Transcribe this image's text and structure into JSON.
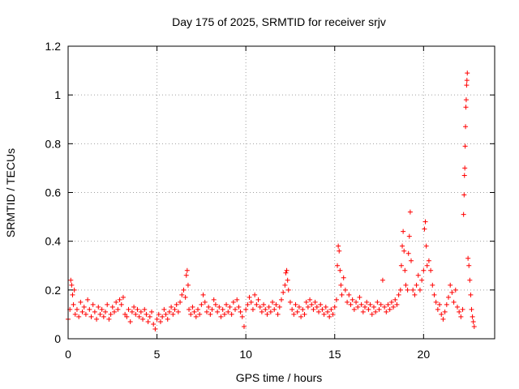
{
  "chart_data": {
    "type": "scatter",
    "title": "Day 175 of 2025, SRMTID for receiver srjv",
    "xlabel": "GPS time / hours",
    "ylabel": "SRMTID / TECUs",
    "xlim": [
      0,
      24
    ],
    "ylim": [
      0,
      1.2
    ],
    "xticks": [
      0,
      5,
      10,
      15,
      20
    ],
    "xtick_labels": [
      "0",
      "5",
      "10",
      "15",
      "20"
    ],
    "yticks": [
      0,
      0.2,
      0.4,
      0.6,
      0.8,
      1,
      1.2
    ],
    "ytick_labels": [
      "0",
      "0.2",
      "0.4",
      "0.6",
      "0.8",
      "1",
      "1.2"
    ],
    "grid": true,
    "marker": "+",
    "color": "#ff0000",
    "axis_color": "#000000",
    "grid_color": "#a0a0a0",
    "series": [
      {
        "name": "SRMTID",
        "points": [
          [
            0.0,
            0.08
          ],
          [
            0.1,
            0.12
          ],
          [
            0.15,
            0.24
          ],
          [
            0.2,
            0.22
          ],
          [
            0.25,
            0.18
          ],
          [
            0.3,
            0.14
          ],
          [
            0.35,
            0.2
          ],
          [
            0.4,
            0.1
          ],
          [
            0.5,
            0.12
          ],
          [
            0.6,
            0.09
          ],
          [
            0.7,
            0.15
          ],
          [
            0.8,
            0.11
          ],
          [
            0.9,
            0.13
          ],
          [
            1.0,
            0.1
          ],
          [
            1.1,
            0.16
          ],
          [
            1.2,
            0.12
          ],
          [
            1.3,
            0.09
          ],
          [
            1.4,
            0.14
          ],
          [
            1.5,
            0.11
          ],
          [
            1.6,
            0.08
          ],
          [
            1.7,
            0.13
          ],
          [
            1.8,
            0.1
          ],
          [
            1.9,
            0.12
          ],
          [
            2.0,
            0.09
          ],
          [
            2.1,
            0.11
          ],
          [
            2.2,
            0.14
          ],
          [
            2.3,
            0.08
          ],
          [
            2.4,
            0.1
          ],
          [
            2.5,
            0.13
          ],
          [
            2.6,
            0.11
          ],
          [
            2.7,
            0.15
          ],
          [
            2.8,
            0.12
          ],
          [
            2.9,
            0.16
          ],
          [
            3.0,
            0.14
          ],
          [
            3.1,
            0.17
          ],
          [
            3.2,
            0.1
          ],
          [
            3.3,
            0.09
          ],
          [
            3.4,
            0.12
          ],
          [
            3.5,
            0.07
          ],
          [
            3.6,
            0.11
          ],
          [
            3.7,
            0.13
          ],
          [
            3.8,
            0.1
          ],
          [
            3.9,
            0.12
          ],
          [
            4.0,
            0.09
          ],
          [
            4.1,
            0.11
          ],
          [
            4.2,
            0.08
          ],
          [
            4.3,
            0.12
          ],
          [
            4.4,
            0.1
          ],
          [
            4.5,
            0.07
          ],
          [
            4.6,
            0.09
          ],
          [
            4.7,
            0.11
          ],
          [
            4.8,
            0.06
          ],
          [
            4.9,
            0.04
          ],
          [
            5.0,
            0.08
          ],
          [
            5.1,
            0.1
          ],
          [
            5.2,
            0.07
          ],
          [
            5.3,
            0.09
          ],
          [
            5.4,
            0.12
          ],
          [
            5.5,
            0.1
          ],
          [
            5.6,
            0.08
          ],
          [
            5.7,
            0.11
          ],
          [
            5.8,
            0.13
          ],
          [
            5.9,
            0.1
          ],
          [
            6.0,
            0.12
          ],
          [
            6.1,
            0.14
          ],
          [
            6.2,
            0.11
          ],
          [
            6.3,
            0.15
          ],
          [
            6.4,
            0.18
          ],
          [
            6.5,
            0.2
          ],
          [
            6.6,
            0.17
          ],
          [
            6.65,
            0.26
          ],
          [
            6.7,
            0.28
          ],
          [
            6.75,
            0.22
          ],
          [
            6.8,
            0.12
          ],
          [
            6.9,
            0.1
          ],
          [
            7.0,
            0.13
          ],
          [
            7.1,
            0.11
          ],
          [
            7.2,
            0.09
          ],
          [
            7.3,
            0.12
          ],
          [
            7.4,
            0.1
          ],
          [
            7.5,
            0.14
          ],
          [
            7.6,
            0.18
          ],
          [
            7.7,
            0.15
          ],
          [
            7.8,
            0.11
          ],
          [
            7.9,
            0.13
          ],
          [
            8.0,
            0.1
          ],
          [
            8.1,
            0.12
          ],
          [
            8.2,
            0.16
          ],
          [
            8.3,
            0.14
          ],
          [
            8.4,
            0.11
          ],
          [
            8.5,
            0.13
          ],
          [
            8.6,
            0.09
          ],
          [
            8.7,
            0.12
          ],
          [
            8.8,
            0.1
          ],
          [
            8.9,
            0.14
          ],
          [
            9.0,
            0.11
          ],
          [
            9.1,
            0.13
          ],
          [
            9.2,
            0.1
          ],
          [
            9.3,
            0.15
          ],
          [
            9.4,
            0.12
          ],
          [
            9.5,
            0.16
          ],
          [
            9.6,
            0.13
          ],
          [
            9.7,
            0.11
          ],
          [
            9.8,
            0.09
          ],
          [
            9.9,
            0.05
          ],
          [
            10.0,
            0.12
          ],
          [
            10.1,
            0.14
          ],
          [
            10.2,
            0.17
          ],
          [
            10.3,
            0.15
          ],
          [
            10.4,
            0.12
          ],
          [
            10.5,
            0.18
          ],
          [
            10.6,
            0.14
          ],
          [
            10.7,
            0.16
          ],
          [
            10.8,
            0.13
          ],
          [
            10.9,
            0.11
          ],
          [
            11.0,
            0.14
          ],
          [
            11.1,
            0.12
          ],
          [
            11.2,
            0.1
          ],
          [
            11.3,
            0.13
          ],
          [
            11.4,
            0.11
          ],
          [
            11.5,
            0.15
          ],
          [
            11.6,
            0.12
          ],
          [
            11.7,
            0.14
          ],
          [
            11.8,
            0.1
          ],
          [
            11.9,
            0.13
          ],
          [
            12.0,
            0.16
          ],
          [
            12.1,
            0.19
          ],
          [
            12.2,
            0.22
          ],
          [
            12.25,
            0.27
          ],
          [
            12.3,
            0.28
          ],
          [
            12.35,
            0.24
          ],
          [
            12.4,
            0.2
          ],
          [
            12.5,
            0.15
          ],
          [
            12.6,
            0.12
          ],
          [
            12.7,
            0.1
          ],
          [
            12.8,
            0.14
          ],
          [
            12.9,
            0.11
          ],
          [
            13.0,
            0.13
          ],
          [
            13.1,
            0.09
          ],
          [
            13.2,
            0.12
          ],
          [
            13.3,
            0.1
          ],
          [
            13.4,
            0.15
          ],
          [
            13.5,
            0.13
          ],
          [
            13.6,
            0.16
          ],
          [
            13.7,
            0.14
          ],
          [
            13.8,
            0.12
          ],
          [
            13.9,
            0.15
          ],
          [
            14.0,
            0.13
          ],
          [
            14.1,
            0.11
          ],
          [
            14.2,
            0.14
          ],
          [
            14.3,
            0.12
          ],
          [
            14.4,
            0.1
          ],
          [
            14.5,
            0.13
          ],
          [
            14.6,
            0.11
          ],
          [
            14.7,
            0.09
          ],
          [
            14.8,
            0.12
          ],
          [
            14.9,
            0.1
          ],
          [
            15.0,
            0.13
          ],
          [
            15.1,
            0.16
          ],
          [
            15.15,
            0.3
          ],
          [
            15.2,
            0.38
          ],
          [
            15.25,
            0.36
          ],
          [
            15.3,
            0.28
          ],
          [
            15.35,
            0.22
          ],
          [
            15.4,
            0.18
          ],
          [
            15.5,
            0.25
          ],
          [
            15.6,
            0.2
          ],
          [
            15.7,
            0.15
          ],
          [
            15.8,
            0.18
          ],
          [
            15.9,
            0.14
          ],
          [
            16.0,
            0.16
          ],
          [
            16.1,
            0.12
          ],
          [
            16.2,
            0.15
          ],
          [
            16.3,
            0.13
          ],
          [
            16.4,
            0.17
          ],
          [
            16.5,
            0.14
          ],
          [
            16.6,
            0.11
          ],
          [
            16.7,
            0.13
          ],
          [
            16.8,
            0.15
          ],
          [
            16.9,
            0.12
          ],
          [
            17.0,
            0.14
          ],
          [
            17.1,
            0.1
          ],
          [
            17.2,
            0.13
          ],
          [
            17.3,
            0.11
          ],
          [
            17.4,
            0.15
          ],
          [
            17.5,
            0.12
          ],
          [
            17.6,
            0.14
          ],
          [
            17.7,
            0.24
          ],
          [
            17.8,
            0.13
          ],
          [
            17.9,
            0.11
          ],
          [
            18.0,
            0.14
          ],
          [
            18.1,
            0.12
          ],
          [
            18.2,
            0.15
          ],
          [
            18.3,
            0.13
          ],
          [
            18.4,
            0.16
          ],
          [
            18.5,
            0.14
          ],
          [
            18.6,
            0.18
          ],
          [
            18.7,
            0.2
          ],
          [
            18.75,
            0.3
          ],
          [
            18.8,
            0.38
          ],
          [
            18.85,
            0.44
          ],
          [
            18.9,
            0.36
          ],
          [
            18.95,
            0.28
          ],
          [
            19.0,
            0.22
          ],
          [
            19.1,
            0.2
          ],
          [
            19.15,
            0.35
          ],
          [
            19.2,
            0.42
          ],
          [
            19.25,
            0.52
          ],
          [
            19.3,
            0.32
          ],
          [
            19.4,
            0.2
          ],
          [
            19.5,
            0.18
          ],
          [
            19.6,
            0.22
          ],
          [
            19.7,
            0.26
          ],
          [
            19.8,
            0.2
          ],
          [
            19.9,
            0.24
          ],
          [
            20.0,
            0.28
          ],
          [
            20.05,
            0.45
          ],
          [
            20.1,
            0.48
          ],
          [
            20.15,
            0.38
          ],
          [
            20.2,
            0.3
          ],
          [
            20.3,
            0.32
          ],
          [
            20.4,
            0.28
          ],
          [
            20.5,
            0.22
          ],
          [
            20.6,
            0.18
          ],
          [
            20.7,
            0.15
          ],
          [
            20.8,
            0.12
          ],
          [
            20.9,
            0.14
          ],
          [
            21.0,
            0.1
          ],
          [
            21.1,
            0.08
          ],
          [
            21.2,
            0.11
          ],
          [
            21.3,
            0.14
          ],
          [
            21.4,
            0.17
          ],
          [
            21.5,
            0.22
          ],
          [
            21.6,
            0.19
          ],
          [
            21.7,
            0.15
          ],
          [
            21.8,
            0.2
          ],
          [
            21.9,
            0.13
          ],
          [
            22.0,
            0.11
          ],
          [
            22.1,
            0.09
          ],
          [
            22.2,
            0.12
          ],
          [
            22.25,
            0.51
          ],
          [
            22.28,
            0.59
          ],
          [
            22.3,
            0.67
          ],
          [
            22.32,
            0.7
          ],
          [
            22.34,
            0.79
          ],
          [
            22.36,
            0.87
          ],
          [
            22.38,
            0.95
          ],
          [
            22.4,
            0.98
          ],
          [
            22.42,
            1.04
          ],
          [
            22.44,
            1.06
          ],
          [
            22.46,
            1.09
          ],
          [
            22.5,
            0.33
          ],
          [
            22.55,
            0.3
          ],
          [
            22.6,
            0.24
          ],
          [
            22.65,
            0.18
          ],
          [
            22.7,
            0.12
          ],
          [
            22.75,
            0.09
          ],
          [
            22.8,
            0.07
          ],
          [
            22.85,
            0.05
          ]
        ]
      }
    ]
  }
}
